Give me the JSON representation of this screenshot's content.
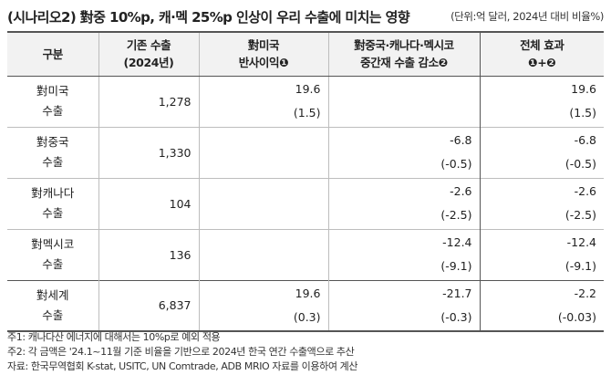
{
  "title": "(시나리오2) 對중 10%p, 캐·멕 25%p 인상이 우리 수출에 미치는 영향",
  "unit": "(단위:억 달러, 2024년 대비 비율%)",
  "headers": {
    "category": "구분",
    "base_line1": "기존 수출",
    "base_line2": "(2024년)",
    "effect1_line1": "對미국",
    "effect1_line2": "반사이익❶",
    "effect2_line1": "對중국·캐나다·멕시코",
    "effect2_line2": "중간재 수출 감소❷",
    "total_line1": "전체 효과",
    "total_line2": "❶+❷"
  },
  "rows": [
    {
      "cat1": "對미국",
      "cat2": "수출",
      "base": "1,278",
      "e1_val": "19.6",
      "e1_pct": "(1.5)",
      "e2_val": "",
      "e2_pct": "",
      "t_val": "19.6",
      "t_pct": "(1.5)"
    },
    {
      "cat1": "對중국",
      "cat2": "수출",
      "base": "1,330",
      "e1_val": "",
      "e1_pct": "",
      "e2_val": "-6.8",
      "e2_pct": "(-0.5)",
      "t_val": "-6.8",
      "t_pct": "(-0.5)"
    },
    {
      "cat1": "對캐나다",
      "cat2": "수출",
      "base": "104",
      "e1_val": "",
      "e1_pct": "",
      "e2_val": "-2.6",
      "e2_pct": "(-2.5)",
      "t_val": "-2.6",
      "t_pct": "(-2.5)"
    },
    {
      "cat1": "對멕시코",
      "cat2": "수출",
      "base": "136",
      "e1_val": "",
      "e1_pct": "",
      "e2_val": "-12.4",
      "e2_pct": "(-9.1)",
      "t_val": "-12.4",
      "t_pct": "(-9.1)"
    },
    {
      "cat1": "對세계",
      "cat2": "수출",
      "base": "6,837",
      "e1_val": "19.6",
      "e1_pct": "(0.3)",
      "e2_val": "-21.7",
      "e2_pct": "(-0.3)",
      "t_val": "-2.2",
      "t_pct": "(-0.03)"
    }
  ],
  "notes": [
    "주1: 캐나다산 에너지에 대해서는 10%p로 예외 적용",
    "주2: 각 금액은 '24.1~11월 기준 비율을 기반으로 2024년 한국 연간 수출액으로 추산",
    "자료: 한국무역협회 K-stat, USITC, UN Comtrade, ADB MRIO 자료를 이용하여 계산"
  ]
}
